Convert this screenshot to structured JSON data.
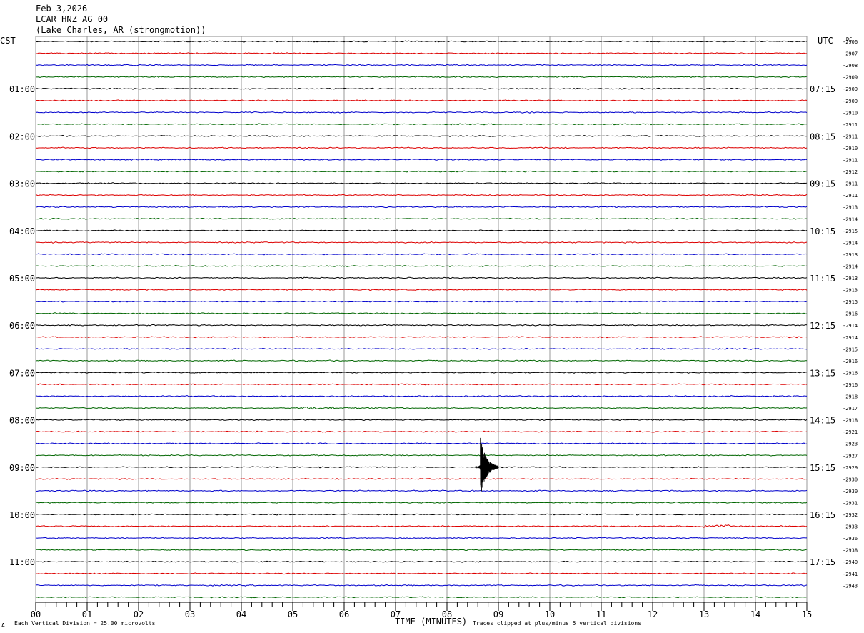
{
  "header": {
    "date": "Feb 3,2026",
    "station": "LCAR HNZ AG 00",
    "location": "(Lake Charles, AR (strongmotion))"
  },
  "chart_data": {
    "type": "line",
    "title": "LCAR HNZ AG 00",
    "left_axis_label": "CST",
    "right_axis_label": "UTC",
    "dc_header": "DC",
    "xlabel": "TIME (MINUTES)",
    "xlim": [
      0,
      15
    ],
    "x_ticks": [
      "00",
      "01",
      "02",
      "03",
      "04",
      "05",
      "06",
      "07",
      "08",
      "09",
      "10",
      "11",
      "12",
      "13",
      "14",
      "15"
    ],
    "grid": true,
    "row_count": 48,
    "trace_colors": [
      "#000000",
      "#dd0000",
      "#0000cc",
      "#006600"
    ],
    "left_hour_labels": [
      {
        "row": 4,
        "label": "01:00"
      },
      {
        "row": 8,
        "label": "02:00"
      },
      {
        "row": 12,
        "label": "03:00"
      },
      {
        "row": 16,
        "label": "04:00"
      },
      {
        "row": 20,
        "label": "05:00"
      },
      {
        "row": 24,
        "label": "06:00"
      },
      {
        "row": 28,
        "label": "07:00"
      },
      {
        "row": 32,
        "label": "08:00"
      },
      {
        "row": 36,
        "label": "09:00"
      },
      {
        "row": 40,
        "label": "10:00"
      },
      {
        "row": 44,
        "label": "11:00"
      }
    ],
    "right_hour_labels": [
      {
        "row": 4,
        "label": "07:15"
      },
      {
        "row": 8,
        "label": "08:15"
      },
      {
        "row": 12,
        "label": "09:15"
      },
      {
        "row": 16,
        "label": "10:15"
      },
      {
        "row": 20,
        "label": "11:15"
      },
      {
        "row": 24,
        "label": "12:15"
      },
      {
        "row": 28,
        "label": "13:15"
      },
      {
        "row": 32,
        "label": "14:15"
      },
      {
        "row": 36,
        "label": "15:15"
      },
      {
        "row": 40,
        "label": "16:15"
      },
      {
        "row": 44,
        "label": "17:15"
      }
    ],
    "dc_values": [
      "-2906",
      "-2907",
      "-2908",
      "-2909",
      "-2909",
      "-2909",
      "-2910",
      "-2911",
      "-2911",
      "-2910",
      "-2911",
      "-2912",
      "-2911",
      "-2911",
      "-2913",
      "-2914",
      "-2915",
      "-2914",
      "-2913",
      "-2914",
      "-2913",
      "-2913",
      "-2915",
      "-2916",
      "-2914",
      "-2914",
      "-2915",
      "-2916",
      "-2916",
      "-2916",
      "-2918",
      "-2917",
      "-2918",
      "-2921",
      "-2923",
      "-2927",
      "-2929",
      "-2930",
      "-2930",
      "-2931",
      "-2932",
      "-2933",
      "-2936",
      "-2938",
      "-2940",
      "-2941",
      "-2943"
    ],
    "events": [
      {
        "row": 36,
        "minute": 8.65,
        "description_amplitude_divisions": 5
      }
    ],
    "minor_bursts": [
      {
        "row": 41,
        "minute_start": 12.95,
        "minute_end": 13.5
      },
      {
        "row": 31,
        "minute_start": 5.2,
        "minute_end": 5.8
      }
    ],
    "footer_left": "Each Vertical Division =   25.00 microvolts",
    "footer_right": "Traces clipped at plus/minus 5 vertical divisions",
    "footer_mark": "A"
  }
}
